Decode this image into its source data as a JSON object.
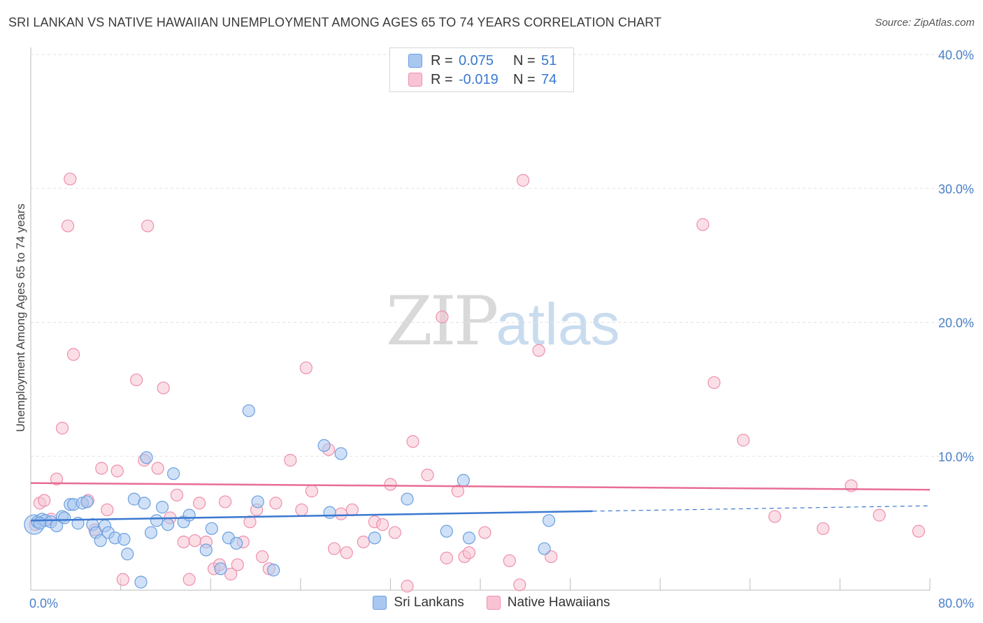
{
  "chart_data": {
    "type": "scatter",
    "title": "SRI LANKAN VS NATIVE HAWAIIAN UNEMPLOYMENT AMONG AGES 65 TO 74 YEARS CORRELATION CHART",
    "source": "Source: ZipAtlas.com",
    "xlabel": "",
    "ylabel": "Unemployment Among Ages 65 to 74 years",
    "xlim": [
      0,
      80
    ],
    "ylim": [
      0,
      40
    ],
    "x_tick_labels": {
      "min": "0.0%",
      "max": "80.0%"
    },
    "y_ticks": [
      {
        "value": 10,
        "label": "10.0%"
      },
      {
        "value": 20,
        "label": "20.0%"
      },
      {
        "value": 30,
        "label": "30.0%"
      },
      {
        "value": 40,
        "label": "40.0%"
      }
    ],
    "grid": true,
    "legend": {
      "position": "top-center",
      "rows": [
        {
          "r_label": "R =",
          "r_value": "0.075",
          "n_label": "N =",
          "n_value": "51"
        },
        {
          "r_label": "R =",
          "r_value": "-0.019",
          "n_label": "N =",
          "n_value": "74"
        }
      ]
    },
    "watermark": {
      "zip": "ZIP",
      "atlas": "atlas"
    },
    "series": [
      {
        "name": "Sri Lankans",
        "color": "#a9c8f0",
        "stroke": "#6a9fe0",
        "line_color": "#3a78d0",
        "trend": {
          "x0": 0,
          "y0": 5.2,
          "x1": 50,
          "y1": 5.9,
          "x_dash_end": 80,
          "y_dash_end": 6.3
        },
        "points": [
          [
            0.3,
            4.9,
            "L"
          ],
          [
            0.6,
            5.1
          ],
          [
            1.0,
            5.3
          ],
          [
            1.3,
            5.2
          ],
          [
            1.8,
            5.1
          ],
          [
            2.3,
            4.8
          ],
          [
            2.8,
            5.5
          ],
          [
            3.0,
            5.4
          ],
          [
            3.5,
            6.4
          ],
          [
            3.8,
            6.4
          ],
          [
            4.2,
            5.0
          ],
          [
            4.6,
            6.5
          ],
          [
            5.0,
            6.6
          ],
          [
            5.5,
            4.9
          ],
          [
            5.8,
            4.3
          ],
          [
            6.2,
            3.7
          ],
          [
            6.6,
            4.8
          ],
          [
            6.9,
            4.3
          ],
          [
            7.5,
            3.9
          ],
          [
            8.3,
            3.8
          ],
          [
            8.6,
            2.7
          ],
          [
            9.2,
            6.8
          ],
          [
            9.8,
            0.6
          ],
          [
            10.1,
            6.5
          ],
          [
            10.3,
            9.9
          ],
          [
            10.7,
            4.3
          ],
          [
            11.2,
            5.2
          ],
          [
            11.7,
            6.2
          ],
          [
            12.2,
            4.9
          ],
          [
            12.7,
            8.7
          ],
          [
            13.6,
            5.1
          ],
          [
            14.1,
            5.6
          ],
          [
            15.6,
            3.0
          ],
          [
            16.1,
            4.6
          ],
          [
            16.9,
            1.6
          ],
          [
            17.6,
            3.9
          ],
          [
            18.3,
            3.5
          ],
          [
            19.4,
            13.4
          ],
          [
            20.2,
            6.6
          ],
          [
            21.6,
            1.5
          ],
          [
            26.1,
            10.8
          ],
          [
            26.6,
            5.8
          ],
          [
            27.6,
            10.2
          ],
          [
            30.6,
            3.9
          ],
          [
            33.5,
            6.8
          ],
          [
            37.0,
            4.4
          ],
          [
            38.5,
            8.2
          ],
          [
            39.0,
            3.9
          ],
          [
            45.7,
            3.1
          ],
          [
            46.1,
            5.2
          ],
          [
            0.8,
            5.0
          ]
        ]
      },
      {
        "name": "Native Hawaiians",
        "color": "#f8c4d3",
        "stroke": "#ee8fac",
        "line_color": "#e86d94",
        "trend": {
          "x0": 0,
          "y0": 8.0,
          "x1": 80,
          "y1": 7.5
        },
        "points": [
          [
            0.4,
            4.9
          ],
          [
            0.8,
            6.5
          ],
          [
            1.2,
            6.7
          ],
          [
            1.8,
            5.3
          ],
          [
            2.3,
            8.3
          ],
          [
            2.8,
            12.1
          ],
          [
            3.3,
            27.2
          ],
          [
            3.8,
            17.6
          ],
          [
            5.1,
            6.7
          ],
          [
            5.7,
            4.5
          ],
          [
            6.3,
            9.1
          ],
          [
            6.8,
            6.0
          ],
          [
            7.7,
            8.9
          ],
          [
            8.2,
            0.8
          ],
          [
            9.4,
            15.7
          ],
          [
            10.1,
            9.7
          ],
          [
            10.4,
            27.2
          ],
          [
            11.3,
            9.1
          ],
          [
            11.8,
            15.1
          ],
          [
            12.4,
            5.4
          ],
          [
            13.0,
            7.1
          ],
          [
            13.6,
            3.6
          ],
          [
            14.1,
            0.8
          ],
          [
            14.6,
            3.7
          ],
          [
            15.0,
            6.5
          ],
          [
            15.6,
            3.6
          ],
          [
            16.3,
            1.6
          ],
          [
            16.8,
            1.9
          ],
          [
            17.3,
            6.6
          ],
          [
            17.8,
            1.2
          ],
          [
            18.4,
            1.9
          ],
          [
            18.9,
            3.6
          ],
          [
            19.5,
            5.1
          ],
          [
            20.1,
            6.0
          ],
          [
            20.6,
            2.5
          ],
          [
            21.2,
            1.6
          ],
          [
            21.8,
            6.5
          ],
          [
            23.1,
            9.7
          ],
          [
            24.1,
            6.0
          ],
          [
            24.5,
            16.6
          ],
          [
            25.0,
            7.4
          ],
          [
            26.5,
            10.5
          ],
          [
            27.0,
            3.1
          ],
          [
            27.6,
            5.7
          ],
          [
            28.1,
            2.8
          ],
          [
            28.6,
            6.0
          ],
          [
            29.6,
            3.6
          ],
          [
            30.6,
            5.1
          ],
          [
            31.3,
            4.9
          ],
          [
            32.0,
            7.9
          ],
          [
            32.4,
            4.3
          ],
          [
            33.5,
            0.3
          ],
          [
            34.0,
            11.1
          ],
          [
            35.3,
            8.6
          ],
          [
            36.6,
            20.4
          ],
          [
            37.0,
            2.4
          ],
          [
            38.0,
            7.4
          ],
          [
            38.6,
            2.5
          ],
          [
            39.0,
            2.8
          ],
          [
            40.4,
            4.3
          ],
          [
            42.6,
            2.2
          ],
          [
            43.5,
            0.4
          ],
          [
            43.8,
            30.6
          ],
          [
            45.2,
            17.9
          ],
          [
            46.3,
            2.5
          ],
          [
            59.8,
            27.3
          ],
          [
            60.8,
            15.5
          ],
          [
            63.4,
            11.2
          ],
          [
            66.2,
            5.5
          ],
          [
            70.5,
            4.6
          ],
          [
            73.0,
            7.8
          ],
          [
            75.5,
            5.6
          ],
          [
            79.0,
            4.4
          ],
          [
            3.5,
            30.7
          ]
        ]
      }
    ]
  }
}
